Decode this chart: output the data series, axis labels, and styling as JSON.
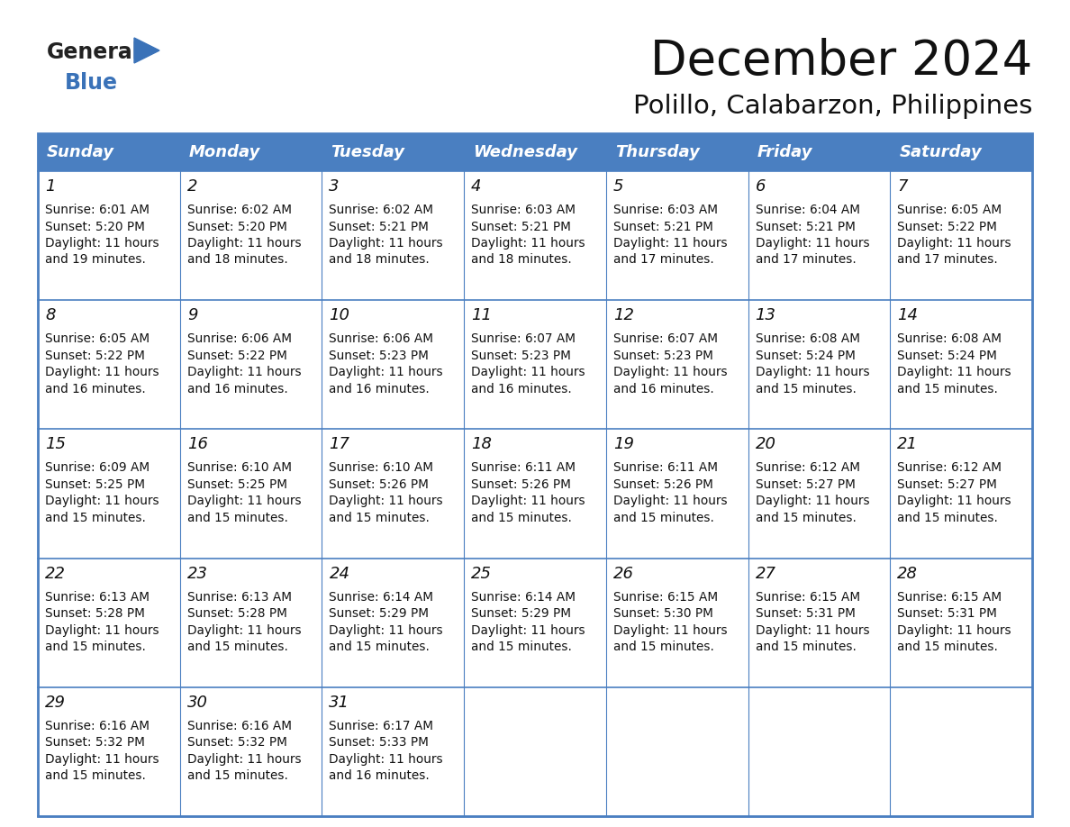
{
  "title": "December 2024",
  "subtitle": "Polillo, Calabarzon, Philippines",
  "header_color": "#4a7fc1",
  "header_text_color": "#FFFFFF",
  "bg_color": "#FFFFFF",
  "border_color": "#4a7fc1",
  "cell_border_color": "#999999",
  "days_of_week": [
    "Sunday",
    "Monday",
    "Tuesday",
    "Wednesday",
    "Thursday",
    "Friday",
    "Saturday"
  ],
  "calendar_data": [
    [
      {
        "day": 1,
        "sunrise": "6:01 AM",
        "sunset": "5:20 PM",
        "daylight_min": "19"
      },
      {
        "day": 2,
        "sunrise": "6:02 AM",
        "sunset": "5:20 PM",
        "daylight_min": "18"
      },
      {
        "day": 3,
        "sunrise": "6:02 AM",
        "sunset": "5:21 PM",
        "daylight_min": "18"
      },
      {
        "day": 4,
        "sunrise": "6:03 AM",
        "sunset": "5:21 PM",
        "daylight_min": "18"
      },
      {
        "day": 5,
        "sunrise": "6:03 AM",
        "sunset": "5:21 PM",
        "daylight_min": "17"
      },
      {
        "day": 6,
        "sunrise": "6:04 AM",
        "sunset": "5:21 PM",
        "daylight_min": "17"
      },
      {
        "day": 7,
        "sunrise": "6:05 AM",
        "sunset": "5:22 PM",
        "daylight_min": "17"
      }
    ],
    [
      {
        "day": 8,
        "sunrise": "6:05 AM",
        "sunset": "5:22 PM",
        "daylight_min": "16"
      },
      {
        "day": 9,
        "sunrise": "6:06 AM",
        "sunset": "5:22 PM",
        "daylight_min": "16"
      },
      {
        "day": 10,
        "sunrise": "6:06 AM",
        "sunset": "5:23 PM",
        "daylight_min": "16"
      },
      {
        "day": 11,
        "sunrise": "6:07 AM",
        "sunset": "5:23 PM",
        "daylight_min": "16"
      },
      {
        "day": 12,
        "sunrise": "6:07 AM",
        "sunset": "5:23 PM",
        "daylight_min": "16"
      },
      {
        "day": 13,
        "sunrise": "6:08 AM",
        "sunset": "5:24 PM",
        "daylight_min": "15"
      },
      {
        "day": 14,
        "sunrise": "6:08 AM",
        "sunset": "5:24 PM",
        "daylight_min": "15"
      }
    ],
    [
      {
        "day": 15,
        "sunrise": "6:09 AM",
        "sunset": "5:25 PM",
        "daylight_min": "15"
      },
      {
        "day": 16,
        "sunrise": "6:10 AM",
        "sunset": "5:25 PM",
        "daylight_min": "15"
      },
      {
        "day": 17,
        "sunrise": "6:10 AM",
        "sunset": "5:26 PM",
        "daylight_min": "15"
      },
      {
        "day": 18,
        "sunrise": "6:11 AM",
        "sunset": "5:26 PM",
        "daylight_min": "15"
      },
      {
        "day": 19,
        "sunrise": "6:11 AM",
        "sunset": "5:26 PM",
        "daylight_min": "15"
      },
      {
        "day": 20,
        "sunrise": "6:12 AM",
        "sunset": "5:27 PM",
        "daylight_min": "15"
      },
      {
        "day": 21,
        "sunrise": "6:12 AM",
        "sunset": "5:27 PM",
        "daylight_min": "15"
      }
    ],
    [
      {
        "day": 22,
        "sunrise": "6:13 AM",
        "sunset": "5:28 PM",
        "daylight_min": "15"
      },
      {
        "day": 23,
        "sunrise": "6:13 AM",
        "sunset": "5:28 PM",
        "daylight_min": "15"
      },
      {
        "day": 24,
        "sunrise": "6:14 AM",
        "sunset": "5:29 PM",
        "daylight_min": "15"
      },
      {
        "day": 25,
        "sunrise": "6:14 AM",
        "sunset": "5:29 PM",
        "daylight_min": "15"
      },
      {
        "day": 26,
        "sunrise": "6:15 AM",
        "sunset": "5:30 PM",
        "daylight_min": "15"
      },
      {
        "day": 27,
        "sunrise": "6:15 AM",
        "sunset": "5:31 PM",
        "daylight_min": "15"
      },
      {
        "day": 28,
        "sunrise": "6:15 AM",
        "sunset": "5:31 PM",
        "daylight_min": "15"
      }
    ],
    [
      {
        "day": 29,
        "sunrise": "6:16 AM",
        "sunset": "5:32 PM",
        "daylight_min": "15"
      },
      {
        "day": 30,
        "sunrise": "6:16 AM",
        "sunset": "5:32 PM",
        "daylight_min": "15"
      },
      {
        "day": 31,
        "sunrise": "6:17 AM",
        "sunset": "5:33 PM",
        "daylight_min": "16"
      },
      null,
      null,
      null,
      null
    ]
  ],
  "title_fontsize": 38,
  "subtitle_fontsize": 21,
  "header_fontsize": 13,
  "day_fontsize": 13,
  "cell_fontsize": 9.8,
  "logo_general_color": "#222222",
  "logo_blue_color": "#3a72b8",
  "logo_triangle_color": "#3a72b8"
}
